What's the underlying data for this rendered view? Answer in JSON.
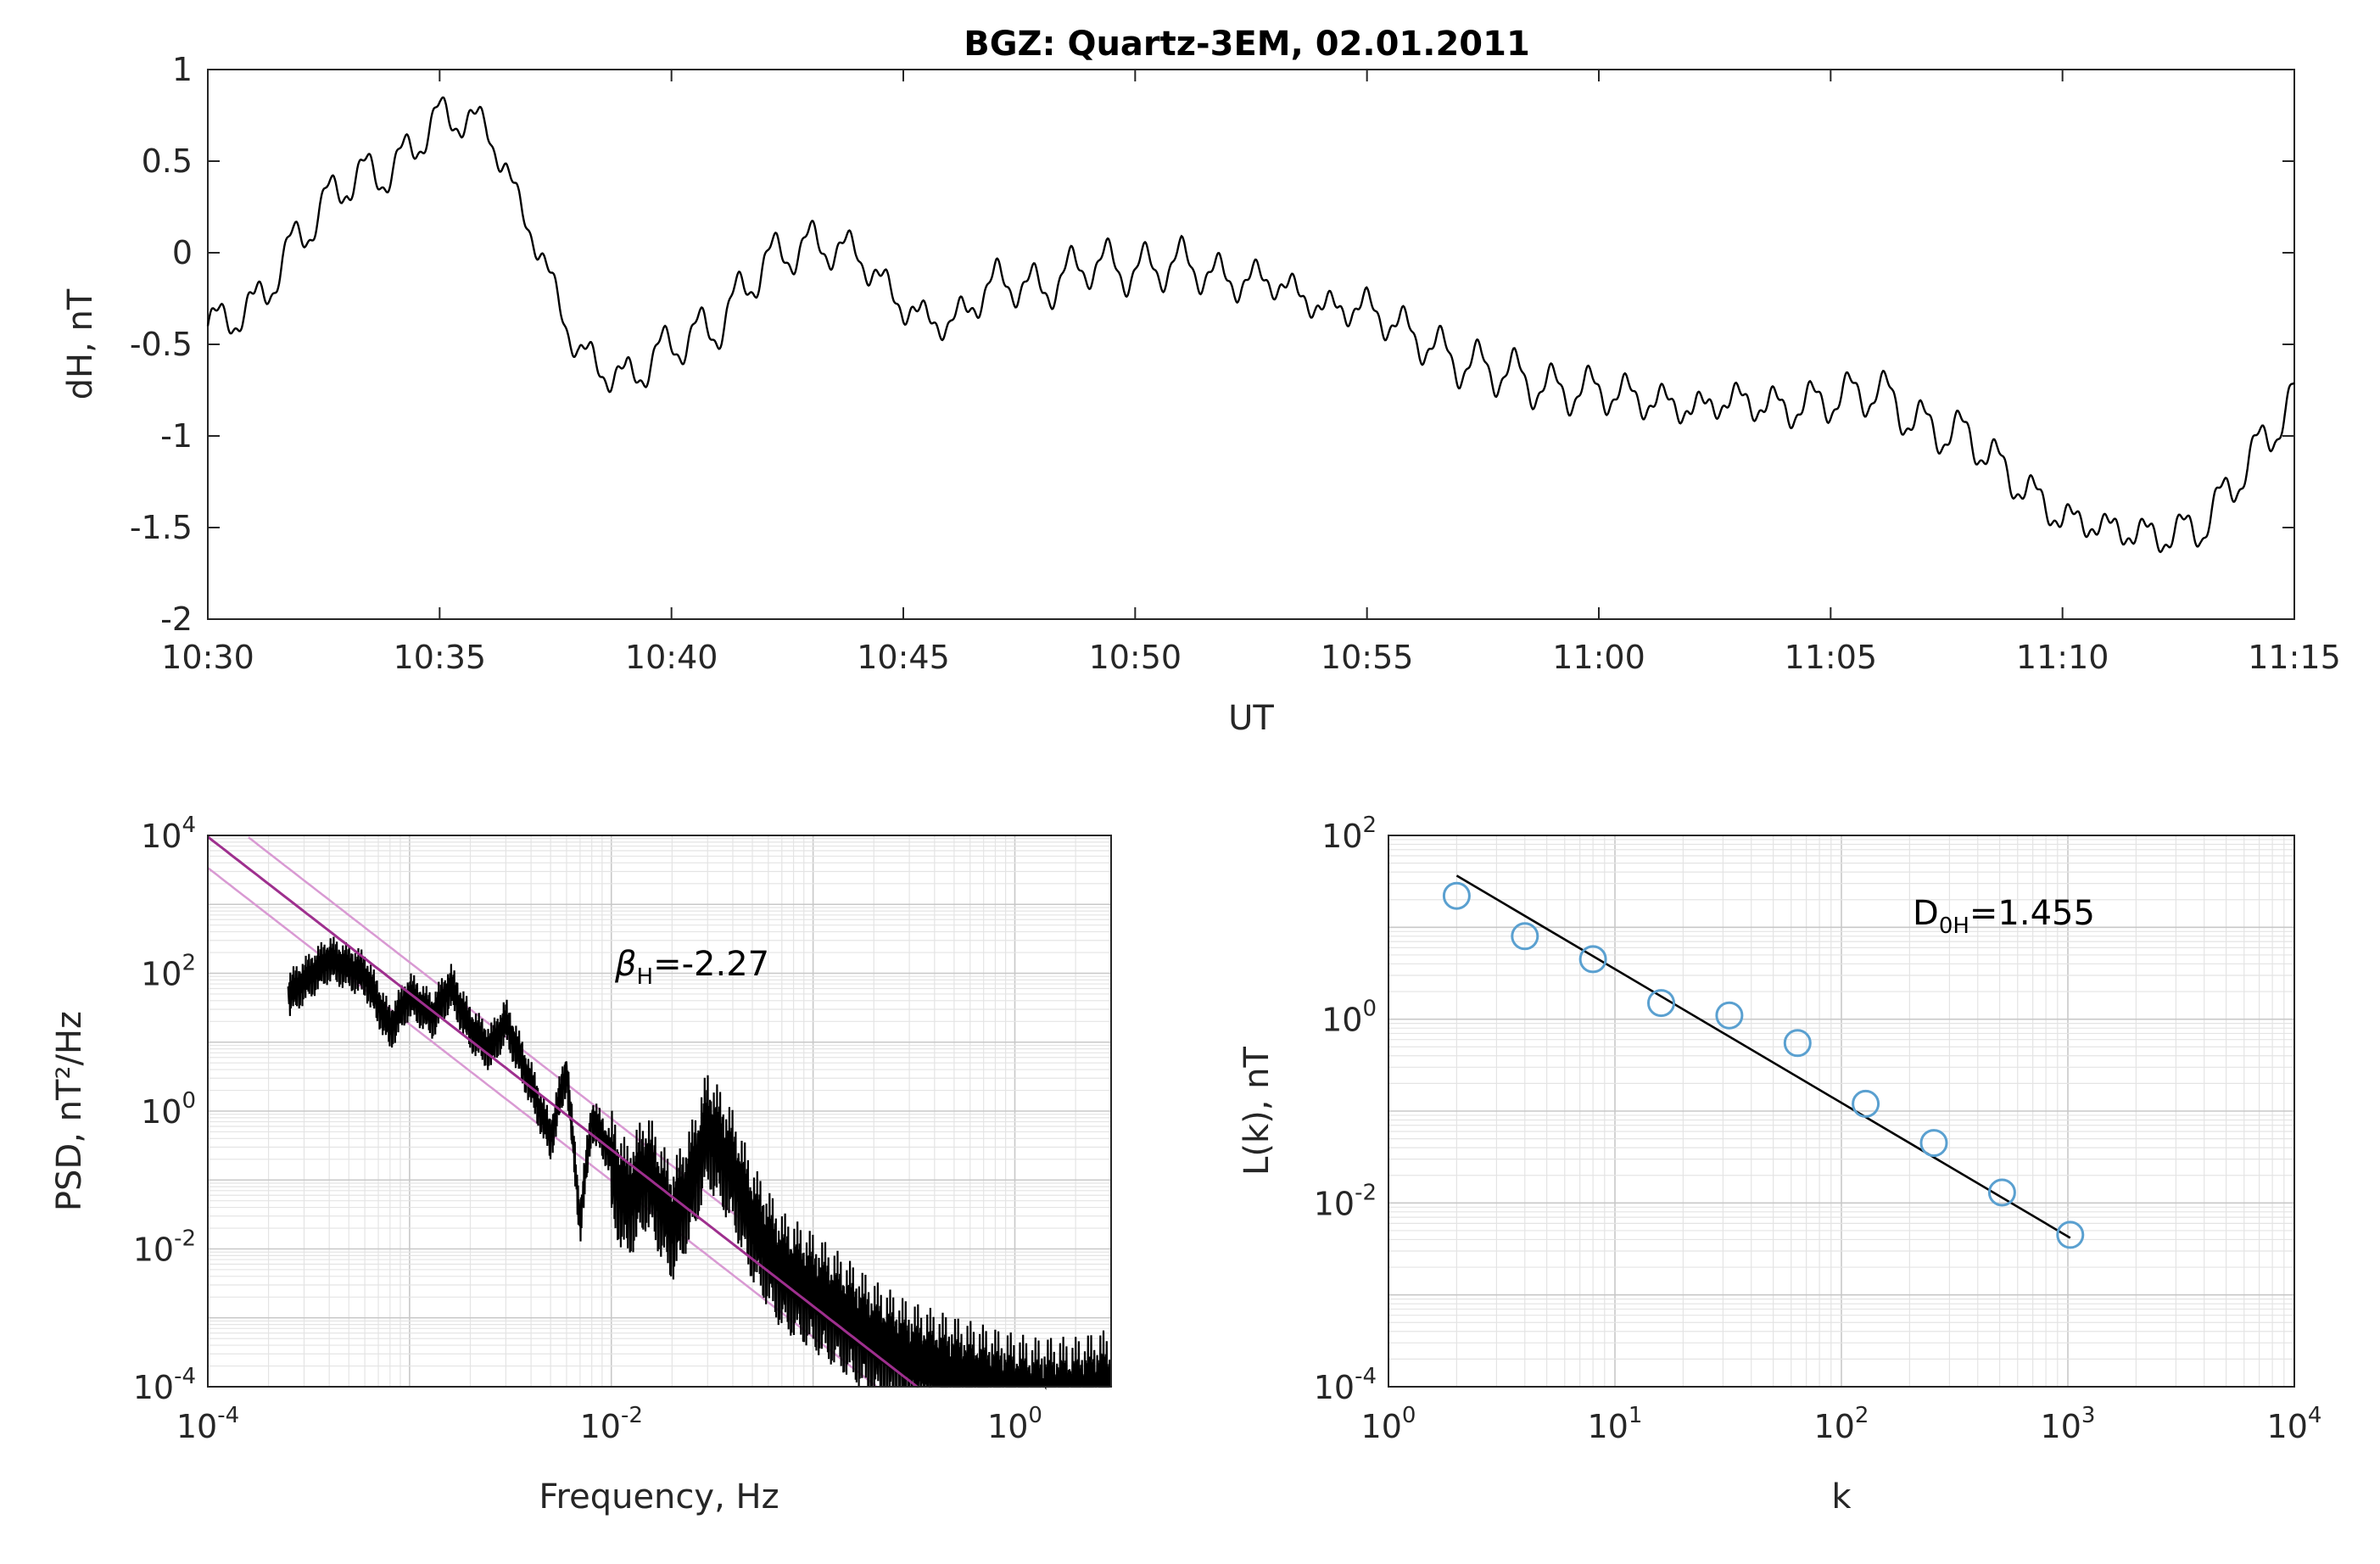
{
  "chart_data": [
    {
      "type": "line",
      "title": "BGZ: Quartz-3EM, 02.01.2011",
      "xlabel": "UT",
      "ylabel": "dH, nT",
      "x_tick_labels": [
        "10:30",
        "10:35",
        "10:40",
        "10:45",
        "10:50",
        "10:55",
        "11:00",
        "11:05",
        "11:10",
        "11:15"
      ],
      "y_tick_labels": [
        "1",
        "0.5",
        "0",
        "-0.5",
        "-1",
        "-1.5",
        "-2"
      ],
      "y_ticks": [
        1,
        0.5,
        0,
        -0.5,
        -1,
        -1.5,
        -2
      ],
      "xlim_minutes_from_start": [
        0,
        45
      ],
      "ylim": [
        -2,
        1
      ],
      "grid": false,
      "series": [
        {
          "color": "#000000",
          "x_minutes_from_start": [
            0,
            1,
            2,
            3,
            4,
            5,
            6,
            7,
            8,
            9,
            10,
            11,
            12,
            13,
            14,
            15,
            16,
            17,
            18,
            19,
            20,
            21,
            22,
            23,
            24,
            25,
            26,
            27,
            28,
            29,
            30,
            31,
            32,
            33,
            34,
            35,
            36,
            37,
            38,
            39,
            40,
            41,
            42,
            43,
            44,
            45
          ],
          "values": [
            -0.4,
            -0.3,
            0.1,
            0.4,
            0.45,
            0.75,
            0.7,
            0.1,
            -0.55,
            -0.7,
            -0.5,
            -0.4,
            -0.05,
            0.05,
            0.0,
            -0.3,
            -0.4,
            -0.15,
            -0.2,
            -0.05,
            -0.1,
            -0.05,
            -0.15,
            -0.15,
            -0.3,
            -0.3,
            -0.45,
            -0.6,
            -0.65,
            -0.75,
            -0.75,
            -0.8,
            -0.85,
            -0.8,
            -0.85,
            -0.8,
            -0.75,
            -0.95,
            -1.0,
            -1.25,
            -1.45,
            -1.5,
            -1.55,
            -1.5,
            -1.15,
            -0.8
          ],
          "oscillation_amplitude_nT": 0.12,
          "oscillation_period_minutes": 0.8
        }
      ]
    },
    {
      "type": "line",
      "xlabel": "Frequency, Hz",
      "ylabel": "PSD, nT²/Hz",
      "x_scale": "log",
      "y_scale": "log",
      "xlim": [
        0.0001,
        3
      ],
      "ylim": [
        0.0001,
        10000
      ],
      "x_ticks": [
        0.0001,
        0.01,
        1
      ],
      "y_ticks": [
        10000,
        100,
        1,
        0.01,
        0.0001
      ],
      "x_tick_labels": [
        {
          "base": "10",
          "exp": "-4"
        },
        {
          "base": "10",
          "exp": "-2"
        },
        {
          "base": "10",
          "exp": "0"
        }
      ],
      "y_tick_labels": [
        {
          "base": "10",
          "exp": "4"
        },
        {
          "base": "10",
          "exp": "2"
        },
        {
          "base": "10",
          "exp": "0"
        },
        {
          "base": "10",
          "exp": "-2"
        },
        {
          "base": "10",
          "exp": "-4"
        }
      ],
      "grid": true,
      "annotation": {
        "symbol": "β",
        "subscript": "H",
        "text": "=-2.27"
      },
      "fit": {
        "slope": -2.27,
        "log10_intercept": -5.1,
        "color": "#9e2f8e",
        "band_offsets_log10": [
          -0.45,
          0.45
        ],
        "band_color": "#d99ad3"
      },
      "series": [
        {
          "color": "#000000",
          "freq": [
            0.00025,
            0.0004,
            0.0006,
            0.0008,
            0.001,
            0.0013,
            0.0016,
            0.002,
            0.0025,
            0.003,
            0.004,
            0.005,
            0.006,
            0.007,
            0.008,
            0.01,
            0.012,
            0.015,
            0.02,
            0.025,
            0.03,
            0.04,
            0.05,
            0.07,
            0.1,
            0.15,
            0.2,
            0.3,
            0.5,
            0.8,
            1.2,
            2.0,
            3.0
          ],
          "psd": [
            60,
            200,
            120,
            20,
            60,
            30,
            80,
            20,
            10,
            25,
            3,
            0.5,
            5,
            0.03,
            1,
            0.3,
            0.1,
            0.3,
            0.05,
            0.2,
            1.2,
            0.3,
            0.05,
            0.01,
            0.005,
            0.002,
            0.001,
            0.0005,
            0.0003,
            0.0002,
            0.00015,
            0.00015,
            0.0002
          ]
        }
      ]
    },
    {
      "type": "scatter",
      "xlabel": "k",
      "ylabel": "L(k), nT",
      "x_scale": "log",
      "y_scale": "log",
      "xlim": [
        1,
        10000
      ],
      "ylim": [
        0.0001,
        100
      ],
      "x_ticks": [
        1,
        10,
        100,
        1000,
        10000
      ],
      "y_ticks": [
        100,
        1,
        0.01,
        0.0001
      ],
      "x_tick_labels": [
        {
          "base": "10",
          "exp": "0"
        },
        {
          "base": "10",
          "exp": "1"
        },
        {
          "base": "10",
          "exp": "2"
        },
        {
          "base": "10",
          "exp": "3"
        },
        {
          "base": "10",
          "exp": "4"
        }
      ],
      "y_tick_labels": [
        {
          "base": "10",
          "exp": "2"
        },
        {
          "base": "10",
          "exp": "0"
        },
        {
          "base": "10",
          "exp": "-2"
        },
        {
          "base": "10",
          "exp": "-4"
        }
      ],
      "grid": true,
      "annotation": {
        "symbol": "D",
        "subscript": "0H",
        "text": "=1.455"
      },
      "marker_color": "#5aa0d0",
      "fit_color": "#000000",
      "fit": {
        "slope": -1.455,
        "log10_intercept": 2.0
      },
      "series": [
        {
          "k": [
            2,
            4,
            8,
            16,
            32,
            64,
            128,
            256,
            512,
            1024
          ],
          "L": [
            22,
            8,
            4.5,
            1.5,
            1.1,
            0.55,
            0.12,
            0.045,
            0.013,
            0.0045
          ]
        }
      ]
    }
  ]
}
